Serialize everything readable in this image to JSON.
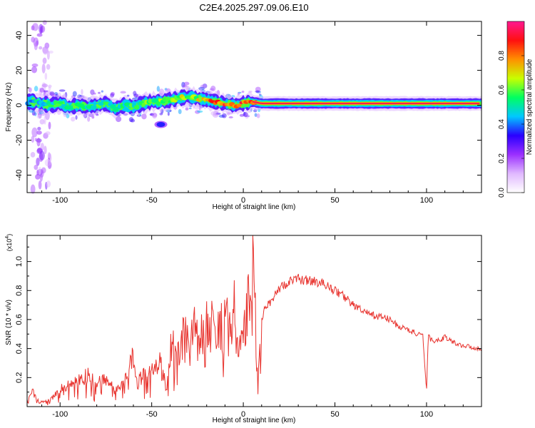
{
  "figure_title": "C2E4.2025.297.09.06.E10",
  "chart_data": [
    {
      "type": "heatmap",
      "name": "spectrogram",
      "xlabel": "Height of straight line (km)",
      "ylabel": "Frequency (Hz)",
      "xlim": [
        -118,
        130
      ],
      "ylim": [
        -50,
        48
      ],
      "xticks": [
        -100,
        -50,
        0,
        50,
        100
      ],
      "yticks": [
        -40,
        -20,
        0,
        20,
        40
      ],
      "colorbar": {
        "label": "Normalized spectral amplitude",
        "range": [
          0,
          1
        ],
        "ticks": [
          "0.0",
          "0.2",
          "0.4",
          "0.6",
          "0.8"
        ],
        "tick_values": [
          0.0,
          0.2,
          0.4,
          0.6,
          0.8
        ],
        "colors": [
          "#ffffff",
          "#e0b8ff",
          "#9b30ff",
          "#2a00ff",
          "#00c8ff",
          "#00ff60",
          "#c8ff00",
          "#ff9000",
          "#ff1010",
          "#ff1890"
        ]
      },
      "ridge_frequency_track": {
        "x": [
          -115,
          -110,
          -105,
          -100,
          -95,
          -90,
          -85,
          -80,
          -75,
          -70,
          -65,
          -60,
          -55,
          -50,
          -45,
          -40,
          -35,
          -30,
          -25,
          -20,
          -15,
          -10,
          -5,
          0,
          5,
          10,
          20,
          40,
          60,
          80,
          100,
          120,
          130
        ],
        "frequency": [
          2,
          1,
          0,
          1,
          -1,
          0,
          -1,
          0,
          1,
          -2,
          0,
          -1,
          1,
          2,
          2,
          3,
          4,
          5,
          4,
          3,
          2,
          1,
          0,
          1,
          2,
          1,
          1,
          1,
          1,
          1,
          1,
          1,
          1
        ],
        "amplitude": [
          0.45,
          0.5,
          0.5,
          0.55,
          0.5,
          0.55,
          0.5,
          0.55,
          0.55,
          0.5,
          0.5,
          0.55,
          0.55,
          0.6,
          0.6,
          0.6,
          0.65,
          0.6,
          0.65,
          0.75,
          0.8,
          0.85,
          0.8,
          0.85,
          0.9,
          0.95,
          0.95,
          0.95,
          0.95,
          0.95,
          0.9,
          0.9,
          0.9
        ]
      },
      "features": [
        {
          "x": -45,
          "frequency": -11,
          "amplitude": 0.35
        },
        {
          "x": -110,
          "frequency_range": [
            -50,
            48
          ],
          "amplitude": 0.2
        }
      ]
    },
    {
      "type": "line",
      "name": "snr",
      "xlabel": "Height of straight line (km)",
      "ylabel": "SNR (10 * v/v)",
      "scale_label": "(x10",
      "scale_exponent": "4",
      "scale_suffix": ")",
      "xlim": [
        -118,
        130
      ],
      "ylim": [
        0,
        1.18
      ],
      "xticks": [
        -100,
        -50,
        0,
        50,
        100
      ],
      "yticks": [
        0.2,
        0.4,
        0.6,
        0.8,
        1.0
      ],
      "ytick_labels": [
        "0.2",
        "0.4",
        "0.6",
        "0.8",
        "1.0"
      ],
      "color": "#e8342f",
      "series": [
        {
          "name": "SNR",
          "x": [
            -118,
            -115,
            -112,
            -110,
            -105,
            -100,
            -95,
            -90,
            -85,
            -80,
            -75,
            -70,
            -65,
            -60,
            -58,
            -55,
            -50,
            -45,
            -42,
            -40,
            -38,
            -35,
            -32,
            -30,
            -28,
            -25,
            -20,
            -15,
            -10,
            -8,
            -5,
            -3,
            0,
            2,
            5,
            6,
            7,
            8,
            9,
            10,
            12,
            15,
            20,
            25,
            30,
            35,
            40,
            45,
            50,
            55,
            60,
            65,
            70,
            75,
            80,
            85,
            90,
            95,
            98,
            100,
            101,
            102,
            105,
            110,
            115,
            120,
            125,
            130
          ],
          "y": [
            0.05,
            0.1,
            0.04,
            0.03,
            0.05,
            0.12,
            0.15,
            0.18,
            0.22,
            0.15,
            0.2,
            0.1,
            0.18,
            0.35,
            0.15,
            0.22,
            0.25,
            0.3,
            0.1,
            0.35,
            0.55,
            0.3,
            0.62,
            0.35,
            0.55,
            0.5,
            0.55,
            0.55,
            0.58,
            0.55,
            0.65,
            0.4,
            0.45,
            0.62,
            0.85,
            1.05,
            0.35,
            0.12,
            0.45,
            0.6,
            0.7,
            0.72,
            0.82,
            0.86,
            0.88,
            0.87,
            0.86,
            0.84,
            0.8,
            0.76,
            0.7,
            0.66,
            0.63,
            0.62,
            0.6,
            0.55,
            0.53,
            0.5,
            0.48,
            0.1,
            0.52,
            0.46,
            0.45,
            0.48,
            0.44,
            0.42,
            0.41,
            0.39
          ]
        }
      ]
    }
  ]
}
